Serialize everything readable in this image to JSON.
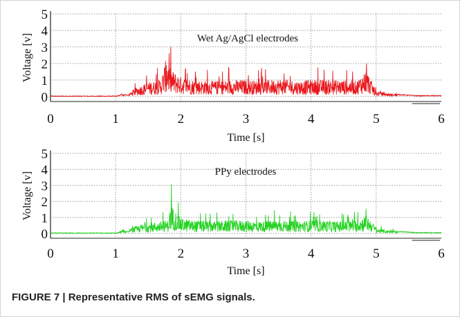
{
  "caption": "FIGURE 7 | Representative RMS of sEMG signals.",
  "chart_data": [
    {
      "type": "line",
      "annotation": "Wet Ag/AgCl electrodes",
      "xlabel": "Time [s]",
      "ylabel": "Voltage [v]",
      "xlim": [
        0,
        6
      ],
      "ylim": [
        -0.3,
        5
      ],
      "xticks": [
        "0",
        "1",
        "2",
        "3",
        "4",
        "5",
        "6"
      ],
      "yticks": [
        "0",
        "1",
        "2",
        "3",
        "4",
        "5"
      ],
      "grid": true,
      "color": "#e8161b",
      "series": [
        {
          "x": [
            0,
            1.0,
            1.05,
            1.1,
            1.15,
            1.2,
            1.25,
            1.3,
            1.4,
            1.5,
            1.6,
            1.7,
            1.78,
            1.85,
            2.0,
            2.2,
            2.5,
            2.8,
            3.0,
            3.2,
            3.5,
            3.8,
            4.0,
            4.2,
            4.4,
            4.7,
            4.85,
            4.95,
            5.0,
            5.2,
            5.5,
            5.6,
            6.0
          ],
          "y": [
            0.02,
            0.02,
            0.05,
            0.15,
            0.1,
            0.08,
            0.3,
            0.4,
            0.55,
            0.7,
            0.75,
            0.85,
            1.9,
            1.3,
            0.95,
            0.8,
            0.75,
            0.8,
            0.8,
            0.75,
            0.85,
            0.75,
            0.8,
            0.8,
            0.8,
            0.75,
            1.3,
            0.6,
            0.25,
            0.15,
            0.08,
            0.05,
            0.05
          ]
        }
      ]
    },
    {
      "type": "line",
      "annotation": "PPy electrodes",
      "xlabel": "Time [s]",
      "ylabel": "Voltage [v]",
      "xlim": [
        0,
        6
      ],
      "ylim": [
        -0.3,
        5
      ],
      "xticks": [
        "0",
        "1",
        "2",
        "3",
        "4",
        "5",
        "6"
      ],
      "yticks": [
        "0",
        "1",
        "2",
        "3",
        "4",
        "5"
      ],
      "grid": true,
      "color": "#22d11f",
      "series": [
        {
          "x": [
            0,
            1.0,
            1.05,
            1.1,
            1.15,
            1.2,
            1.25,
            1.3,
            1.4,
            1.5,
            1.6,
            1.7,
            1.8,
            1.85,
            2.0,
            2.2,
            2.5,
            2.8,
            3.0,
            3.2,
            3.5,
            3.8,
            4.0,
            4.2,
            4.4,
            4.7,
            4.85,
            4.95,
            5.0,
            5.2,
            5.5,
            5.6,
            6.0
          ],
          "y": [
            0.02,
            0.02,
            0.05,
            0.2,
            0.12,
            0.1,
            0.3,
            0.35,
            0.45,
            0.5,
            0.55,
            0.6,
            0.65,
            1.4,
            0.75,
            0.65,
            0.6,
            0.65,
            0.65,
            0.6,
            0.65,
            0.6,
            0.65,
            0.65,
            0.6,
            0.65,
            0.9,
            0.55,
            0.25,
            0.15,
            0.08,
            0.05,
            0.05
          ]
        }
      ]
    }
  ]
}
